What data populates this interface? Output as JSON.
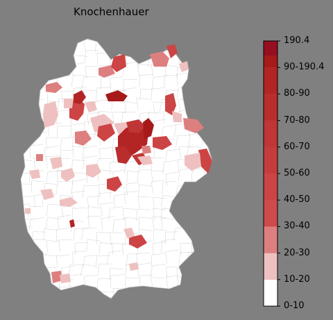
{
  "title": "Knochenhauer",
  "colors": {
    "background": "#808080",
    "land": "#ffffff",
    "border": "#bdbdbd"
  },
  "legend": {
    "bins": [
      {
        "label": "0-10",
        "color": "#ffffff"
      },
      {
        "label": "10-20",
        "color": "#efc0c0"
      },
      {
        "label": "20-30",
        "color": "#de7f7f"
      },
      {
        "label": "30-40",
        "color": "#cf4a4a"
      },
      {
        "label": "40-50",
        "color": "#cc4444"
      },
      {
        "label": "50-60",
        "color": "#c63c3c"
      },
      {
        "label": "60-70",
        "color": "#c03535"
      },
      {
        "label": "70-80",
        "color": "#ba2d2d"
      },
      {
        "label": "80-90",
        "color": "#b32424"
      },
      {
        "label": "90-190.4",
        "color": "#a61a1a"
      }
    ],
    "max_label": "190.4",
    "max_color": "#960f20"
  },
  "regions": [
    {
      "name": "north-frisia-district",
      "bin": 1
    },
    {
      "name": "baltic-coast-east-district",
      "bin": 2
    },
    {
      "name": "schwerin-area-district",
      "bin": 3
    },
    {
      "name": "elbe-middle-district-a",
      "bin": 7
    },
    {
      "name": "elbe-middle-district-b",
      "bin": 8
    },
    {
      "name": "elbe-middle-district-c",
      "bin": 9
    },
    {
      "name": "elbe-middle-district-d",
      "bin": 6
    },
    {
      "name": "saxony-east-district",
      "bin": 4
    },
    {
      "name": "lausitz-east-district",
      "bin": 3
    },
    {
      "name": "emsland-district",
      "bin": 3
    },
    {
      "name": "lower-saxony-central-district",
      "bin": 4
    },
    {
      "name": "franconia-district",
      "bin": 3
    }
  ]
}
